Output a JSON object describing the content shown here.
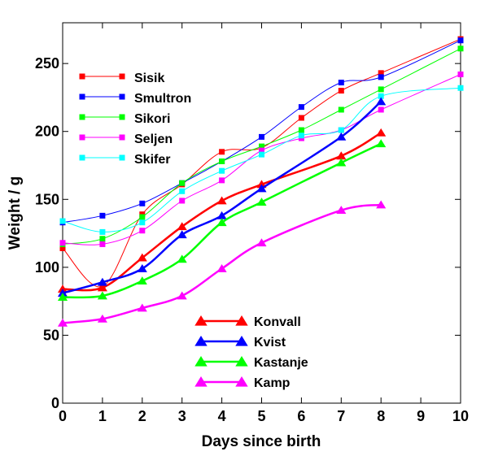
{
  "chart_data": {
    "type": "line",
    "title": "",
    "xlabel": "Days since birth",
    "ylabel": "Weight / g",
    "xlim": [
      0,
      10
    ],
    "ylim": [
      0,
      280
    ],
    "xticks": [
      0,
      1,
      2,
      3,
      4,
      5,
      6,
      7,
      8,
      9,
      10
    ],
    "yticks": [
      0,
      50,
      100,
      150,
      200,
      250
    ],
    "grid": false,
    "legend_groups": [
      {
        "placement": "top-left",
        "series": [
          "Sisik",
          "Smultron",
          "Sikori",
          "Seljen",
          "Skifer"
        ]
      },
      {
        "placement": "bottom-center",
        "series": [
          "Konvall",
          "Kvist",
          "Kastanje",
          "Kamp"
        ]
      }
    ],
    "series": [
      {
        "name": "Sisik",
        "color": "#ff0000",
        "marker": "square",
        "x": [
          0,
          1,
          2,
          3,
          4,
          5,
          6,
          7,
          8,
          10
        ],
        "y": [
          114,
          86,
          139,
          161,
          185,
          188,
          210,
          230,
          243,
          268
        ]
      },
      {
        "name": "Smultron",
        "color": "#0000ff",
        "marker": "square",
        "x": [
          0,
          1,
          2,
          3,
          4,
          5,
          6,
          7,
          8,
          10
        ],
        "y": [
          133,
          138,
          147,
          162,
          178,
          196,
          218,
          236,
          240,
          267
        ]
      },
      {
        "name": "Sikori",
        "color": "#00ff00",
        "marker": "square",
        "x": [
          0,
          1,
          2,
          3,
          4,
          5,
          6,
          7,
          8,
          10
        ],
        "y": [
          117,
          121,
          137,
          162,
          178,
          189,
          201,
          216,
          231,
          261
        ]
      },
      {
        "name": "Seljen",
        "color": "#ff00ff",
        "marker": "square",
        "x": [
          0,
          1,
          2,
          3,
          4,
          5,
          6,
          7,
          8,
          10
        ],
        "y": [
          118,
          117,
          127,
          149,
          164,
          186,
          195,
          201,
          216,
          242
        ]
      },
      {
        "name": "Skifer",
        "color": "#00ffff",
        "marker": "square",
        "x": [
          0,
          1,
          2,
          3,
          4,
          5,
          6,
          7,
          8,
          10
        ],
        "y": [
          134,
          126,
          133,
          156,
          171,
          183,
          197,
          201,
          226,
          232
        ]
      },
      {
        "name": "Konvall",
        "color": "#ff0000",
        "marker": "triangle",
        "x": [
          0,
          1,
          2,
          3,
          4,
          5,
          7,
          8
        ],
        "y": [
          84,
          85,
          107,
          130,
          149,
          161,
          182,
          199
        ]
      },
      {
        "name": "Kvist",
        "color": "#0000ff",
        "marker": "triangle",
        "x": [
          0,
          1,
          2,
          3,
          4,
          5,
          7,
          8
        ],
        "y": [
          81,
          89,
          99,
          124,
          138,
          158,
          196,
          222
        ]
      },
      {
        "name": "Kastanje",
        "color": "#00ff00",
        "marker": "triangle",
        "x": [
          0,
          1,
          2,
          3,
          4,
          5,
          7,
          8
        ],
        "y": [
          78,
          79,
          90,
          106,
          133,
          148,
          177,
          191
        ]
      },
      {
        "name": "Kamp",
        "color": "#ff00ff",
        "marker": "triangle",
        "x": [
          0,
          1,
          2,
          3,
          4,
          5,
          7,
          8
        ],
        "y": [
          59,
          62,
          70,
          79,
          99,
          118,
          142,
          146
        ]
      }
    ]
  }
}
